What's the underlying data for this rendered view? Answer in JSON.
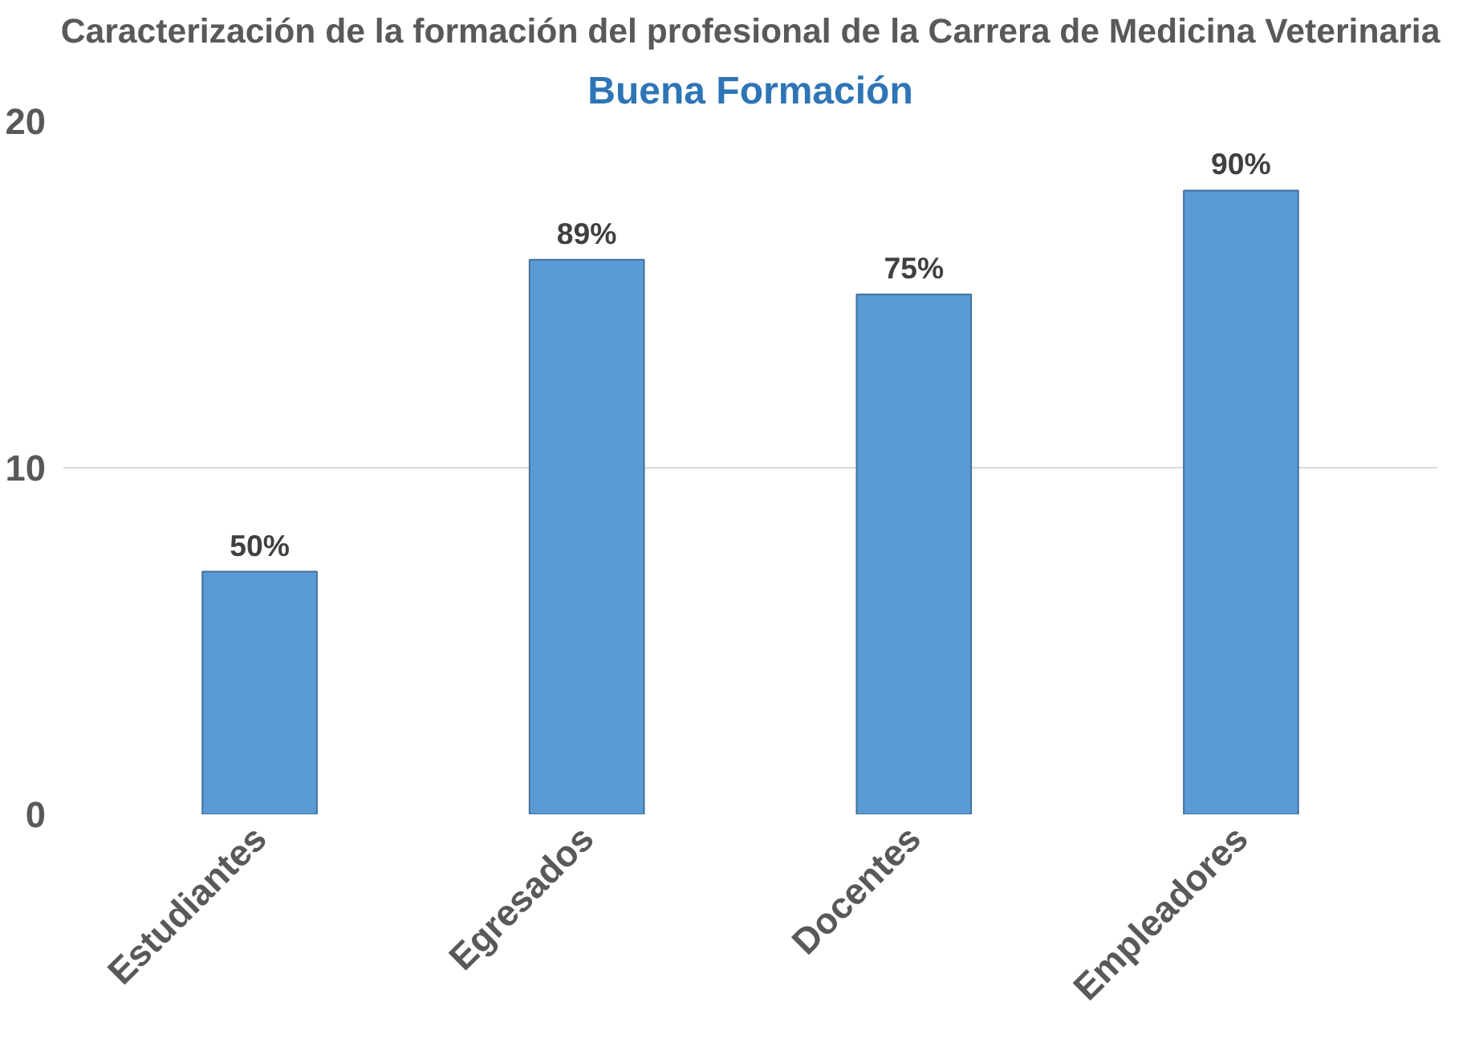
{
  "chart_data": {
    "type": "bar",
    "title": "Caracterización de la formación del profesional de la Carrera de Medicina Veterinaria",
    "subtitle": "Buena Formación",
    "categories": [
      "Estudiantes",
      "Egresados",
      "Docentes",
      "Empleadores"
    ],
    "values": [
      7,
      16,
      15,
      18
    ],
    "annotations": [
      {
        "text": "50%",
        "x": "Estudiantes",
        "y": 7
      },
      {
        "text": "89%",
        "x": "Egresados",
        "y": 16
      },
      {
        "text": "75%",
        "x": "Docentes",
        "y": 15
      },
      {
        "text": "90%",
        "x": "Empleadores",
        "y": 18
      }
    ],
    "color": "#5b9bd5",
    "ylim": [
      0,
      20
    ],
    "yticks": [
      0,
      10,
      20
    ],
    "grid": "y"
  }
}
